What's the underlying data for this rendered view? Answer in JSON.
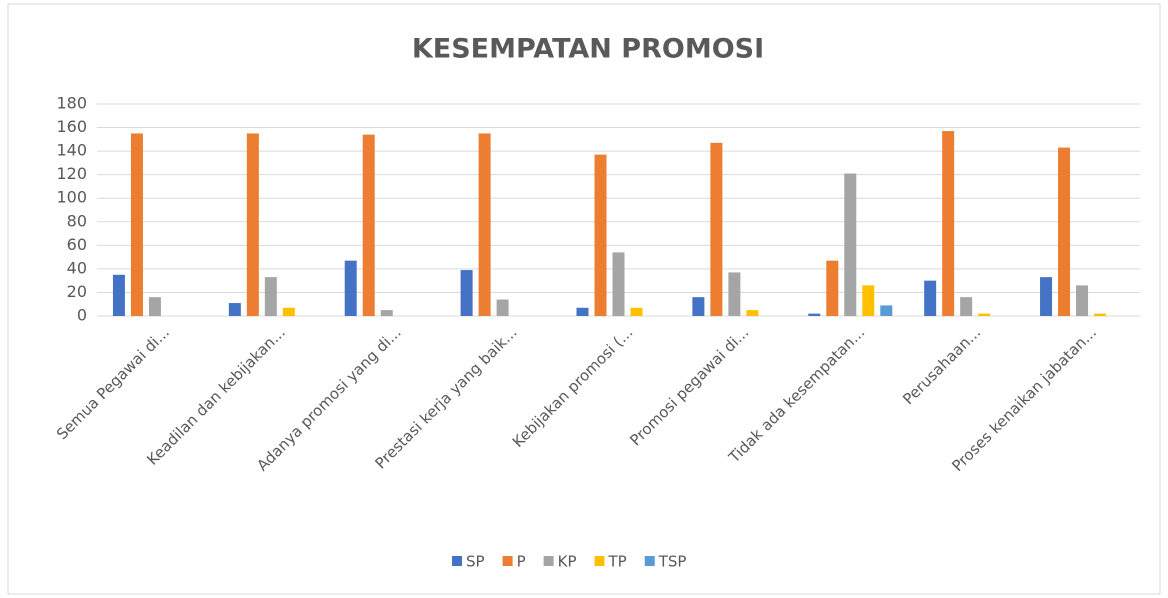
{
  "chart_data": {
    "type": "bar",
    "title": "KESEMPATAN PROMOSI",
    "categories": [
      "Semua Pegawai di...",
      "Keadilan dan kebijakan...",
      "Adanya promosi yang di...",
      "Prestasi kerja yang baik...",
      "Kebijakan promosi (...",
      "Promosi pegawai di...",
      "Tidak ada kesempatan...",
      "Perusahaan...",
      "Proses kenaikan jabatan..."
    ],
    "series": [
      {
        "name": "SP",
        "color": "#4472c4",
        "values": [
          35,
          11,
          47,
          39,
          7,
          16,
          2,
          30,
          33
        ]
      },
      {
        "name": "P",
        "color": "#ed7d31",
        "values": [
          155,
          155,
          154,
          155,
          137,
          147,
          47,
          157,
          143
        ]
      },
      {
        "name": "KP",
        "color": "#a5a5a5",
        "values": [
          16,
          33,
          5,
          14,
          54,
          37,
          121,
          16,
          26
        ]
      },
      {
        "name": "TP",
        "color": "#ffc000",
        "values": [
          0,
          7,
          0,
          0,
          7,
          5,
          26,
          2,
          2
        ]
      },
      {
        "name": "TSP",
        "color": "#5b9bd5",
        "values": [
          0,
          0,
          0,
          0,
          0,
          0,
          9,
          0,
          0
        ]
      }
    ],
    "ylim": [
      0,
      180
    ],
    "yticks": [
      0,
      20,
      40,
      60,
      80,
      100,
      120,
      140,
      160,
      180
    ],
    "grid": true,
    "legend": "bottom"
  }
}
